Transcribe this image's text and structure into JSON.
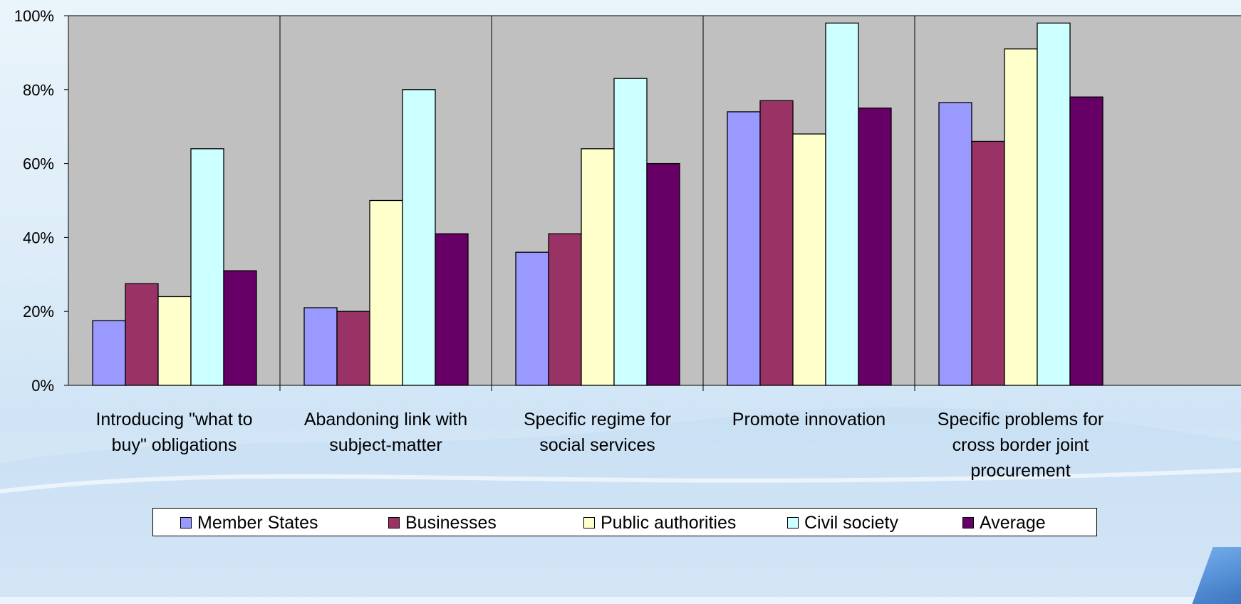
{
  "chart_data": {
    "type": "bar",
    "categories": [
      [
        "Introducing \"what to",
        "buy\" obligations"
      ],
      [
        "Abandoning link with",
        "subject-matter"
      ],
      [
        "Specific regime for",
        "social services"
      ],
      [
        "Promote innovation"
      ],
      [
        "Specific problems for",
        "cross border joint",
        "procurement"
      ]
    ],
    "series": [
      {
        "name": "Member States",
        "color": "#9999ff",
        "values": [
          17.5,
          21,
          36,
          74,
          76.5
        ]
      },
      {
        "name": "Businesses",
        "color": "#993366",
        "values": [
          27.5,
          20,
          41,
          77,
          66
        ]
      },
      {
        "name": "Public authorities",
        "color": "#ffffcc",
        "values": [
          24,
          50,
          64,
          68,
          91
        ]
      },
      {
        "name": "Civil society",
        "color": "#ccffff",
        "values": [
          64,
          80,
          83,
          98,
          98
        ]
      },
      {
        "name": "Average",
        "color": "#660066",
        "values": [
          31,
          41,
          60,
          75,
          78
        ]
      }
    ],
    "ylim": [
      0,
      100
    ],
    "yticks": [
      "0%",
      "20%",
      "40%",
      "60%",
      "80%",
      "100%"
    ],
    "plot_background": "#c0c0c0",
    "grid": false,
    "legend_position": "bottom"
  }
}
